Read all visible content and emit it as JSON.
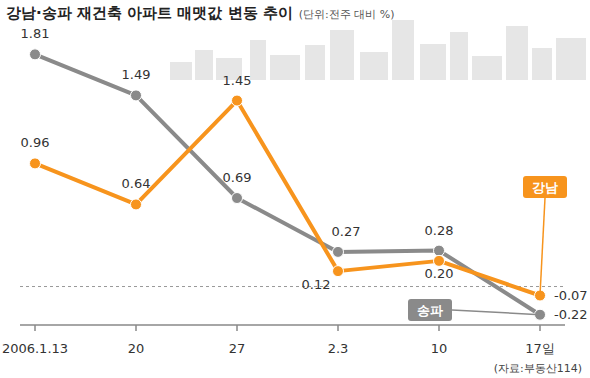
{
  "chart_data": {
    "type": "line",
    "title": "강남·송파 재건축 아파트 매맷값 변동 추이",
    "subtitle": "(단위:전주 대비 %)",
    "source": "(자료:부동산114)",
    "categories": [
      "2006.1.13",
      "20",
      "27",
      "2.3",
      "10",
      "17일"
    ],
    "series": [
      {
        "name": "강남",
        "color": "#f7941d",
        "marker": "circle",
        "line_style": "solid",
        "values": [
          0.96,
          0.64,
          1.45,
          0.12,
          0.2,
          -0.07
        ],
        "value_labels": [
          "0.96",
          "0.64",
          "1.45",
          "0.12",
          "0.20",
          "-0.07"
        ]
      },
      {
        "name": "송파",
        "color": "#8a8a8a",
        "marker": "circle",
        "line_style": "solid",
        "values": [
          1.81,
          1.49,
          0.69,
          0.27,
          0.28,
          -0.22
        ]
      }
    ],
    "ylim": [
      -0.3,
      2.0
    ],
    "yticks": [
      0
    ],
    "grid": true,
    "tick_labels": "x",
    "data_labels": true
  }
}
